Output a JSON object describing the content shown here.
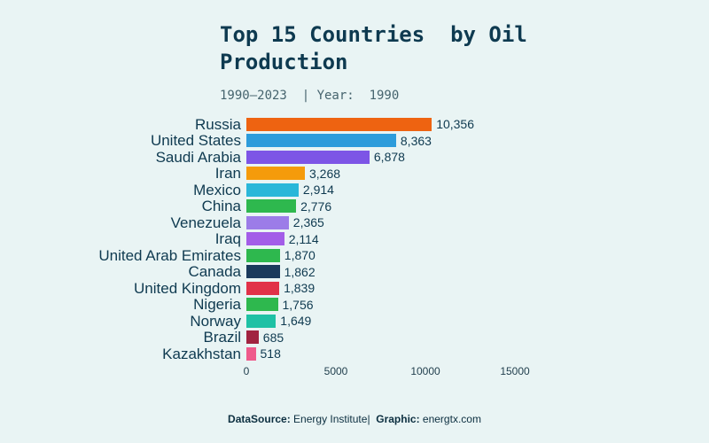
{
  "title": "Top 15 Countries  by Oil Production",
  "subtitle": "1990–2023  | Year:  1990",
  "footer": {
    "datasource_label": "DataSource:",
    "datasource_value": " Energy Institute",
    "separator": "|  ",
    "graphic_label": "Graphic:",
    "graphic_value": " energtx.com"
  },
  "chart_data": {
    "type": "bar",
    "orientation": "horizontal",
    "title": "Top 15 Countries  by Oil Production",
    "subtitle": "1990–2023  | Year:  1990",
    "year": "1990",
    "year_range": "1990–2023",
    "categories": [
      "Russia",
      "United States",
      "Saudi Arabia",
      "Iran",
      "Mexico",
      "China",
      "Venezuela",
      "Iraq",
      "United Arab Emirates",
      "Canada",
      "United Kingdom",
      "Nigeria",
      "Norway",
      "Brazil",
      "Kazakhstan"
    ],
    "values": [
      10356,
      8363,
      6878,
      3268,
      2914,
      2776,
      2365,
      2114,
      1870,
      1862,
      1839,
      1756,
      1649,
      685,
      518
    ],
    "value_labels": [
      "10,356",
      "8,363",
      "6,878",
      "3,268",
      "2,914",
      "2,776",
      "2,365",
      "2,114",
      "1,870",
      "1,862",
      "1,839",
      "1,756",
      "1,649",
      "685",
      "518"
    ],
    "bar_colors": [
      "#ee6311",
      "#2d9cdb",
      "#7d55e6",
      "#f59b0b",
      "#2ab7d9",
      "#2eb84e",
      "#9c7ce8",
      "#a35de8",
      "#2eb84e",
      "#1a3a5c",
      "#e13248",
      "#2eb84e",
      "#1fc1a5",
      "#a12340",
      "#ef5a8b"
    ],
    "x_ticks": [
      0,
      5000,
      10000,
      15000
    ],
    "x_tick_labels": [
      "0",
      "5000",
      "10000",
      "15000"
    ],
    "xlim": [
      0,
      16000
    ],
    "grid": false,
    "legend": false,
    "background_color": "#e9f4f4",
    "text_color": "#0f3a50"
  }
}
